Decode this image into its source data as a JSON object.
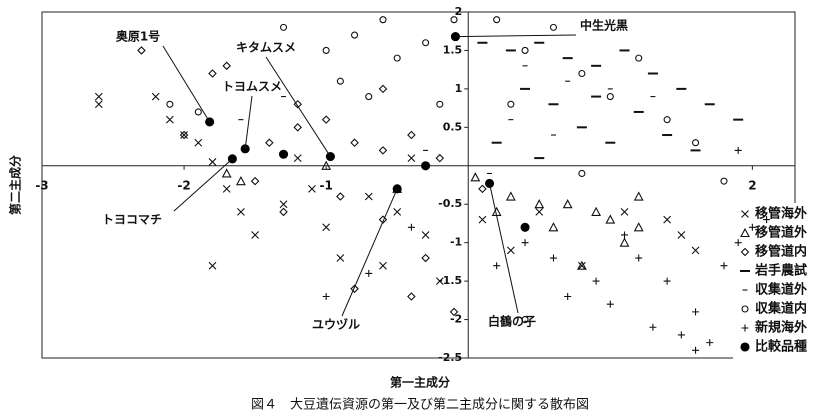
{
  "chart_data": {
    "type": "scatter",
    "xlabel": "第一主成分",
    "ylabel": "第二主成分",
    "caption": "図４　大豆遺伝資源の第一及び第二主成分に関する散布図",
    "xlim": [
      -3,
      2.3
    ],
    "ylim": [
      -2.5,
      2
    ],
    "xticks": [
      -3,
      -2,
      -1,
      2
    ],
    "yticks": [
      -2.5,
      -2,
      -1.5,
      -1,
      -0.5,
      0.5,
      1,
      1.5,
      2
    ],
    "axes_through_origin": true,
    "annotations": [
      "奥原1号",
      "キタムスメ",
      "トヨムスメ",
      "中生光黒",
      "トヨコマチ",
      "ユウヅル",
      "白鶴の子"
    ],
    "series": [
      {
        "name": "移管海外",
        "marker": "x",
        "color": "#111",
        "x": [
          -2.6,
          -2.6,
          -2.2,
          -2.1,
          -2.0,
          -1.9,
          -1.8,
          -1.7,
          -1.6,
          -1.5,
          -1.8,
          -1.3,
          -1.2,
          -1.0,
          -0.9,
          -0.7,
          -0.6,
          -0.4,
          -0.3,
          -0.2,
          0.1,
          0.3,
          0.5,
          0.8,
          1.1,
          1.4,
          1.5,
          1.6,
          -1.1,
          -0.5
        ],
        "y": [
          0.9,
          0.8,
          0.9,
          0.6,
          0.4,
          0.3,
          0.05,
          -0.3,
          -0.6,
          -0.9,
          -1.3,
          -0.5,
          0.1,
          -0.8,
          -1.2,
          -0.4,
          -1.3,
          0.1,
          -0.9,
          -1.5,
          -0.7,
          -1.1,
          -0.6,
          -1.3,
          -0.6,
          -0.7,
          -0.9,
          -1.1,
          -0.3,
          -0.6
        ]
      },
      {
        "name": "移管道外",
        "marker": "triangle",
        "color": "#111",
        "x": [
          -1.7,
          -1.6,
          -1.0,
          -0.5,
          0.05,
          0.3,
          0.5,
          0.6,
          0.7,
          0.9,
          1.0,
          1.2,
          1.2,
          0.8,
          0.2,
          1.1
        ],
        "y": [
          -0.1,
          -0.2,
          0.0,
          -0.3,
          -0.15,
          -0.4,
          -0.5,
          -0.8,
          -0.5,
          -0.6,
          -0.7,
          -0.4,
          -0.8,
          -1.3,
          -0.6,
          -1.0
        ]
      },
      {
        "name": "移管道内",
        "marker": "diamond",
        "color": "#111",
        "x": [
          -2.3,
          -1.7,
          -1.8,
          -2.0,
          -1.4,
          -1.2,
          -1.0,
          -0.8,
          -0.6,
          -0.4,
          -0.2,
          -1.5,
          -1.3,
          -0.9,
          -0.6,
          -0.3,
          -0.1,
          -0.4,
          -0.8,
          -1.2,
          -0.6,
          0.1
        ],
        "y": [
          1.5,
          1.3,
          1.2,
          0.4,
          0.3,
          0.5,
          0.6,
          0.3,
          0.2,
          0.4,
          0.1,
          -0.2,
          -0.6,
          -0.4,
          -0.7,
          -1.2,
          -1.9,
          -1.7,
          -1.6,
          0.8,
          1.0,
          -0.3
        ]
      },
      {
        "name": "岩手農試",
        "marker": "dash",
        "color": "#111",
        "x": [
          0.1,
          0.3,
          0.5,
          0.7,
          0.9,
          1.1,
          1.3,
          1.5,
          1.7,
          1.9,
          0.4,
          0.6,
          0.8,
          1.0,
          1.2,
          1.4,
          0.2,
          1.6,
          0.5,
          0.9
        ],
        "y": [
          1.6,
          1.5,
          1.6,
          1.4,
          1.3,
          1.5,
          1.2,
          1.0,
          0.8,
          0.6,
          1.0,
          0.8,
          0.5,
          0.3,
          0.7,
          0.4,
          0.3,
          0.2,
          0.1,
          0.9
        ]
      },
      {
        "name": "収集道外",
        "marker": "short-dash",
        "color": "#111",
        "x": [
          -1.6,
          -1.3,
          -0.3,
          0.4,
          0.7,
          1.0,
          0.3,
          0.6,
          1.3,
          0.15
        ],
        "y": [
          0.6,
          0.9,
          0.2,
          1.3,
          1.1,
          1.0,
          0.6,
          0.4,
          0.9,
          -0.1
        ]
      },
      {
        "name": "収集道内",
        "marker": "circle",
        "color": "#111",
        "x": [
          -2.1,
          -1.9,
          -1.3,
          -1.0,
          -0.8,
          -0.6,
          -0.5,
          -0.3,
          -0.1,
          0.2,
          0.4,
          0.6,
          0.8,
          1.0,
          1.2,
          1.4,
          1.6,
          -0.7,
          -0.2,
          0.3,
          0.8,
          1.8,
          0.4,
          -0.9
        ],
        "y": [
          0.8,
          0.7,
          1.8,
          1.5,
          1.7,
          1.9,
          1.4,
          1.6,
          1.9,
          1.9,
          1.5,
          1.8,
          1.2,
          0.9,
          1.4,
          0.6,
          0.3,
          0.9,
          0.8,
          0.8,
          -0.1,
          -0.2,
          -2.0,
          1.1
        ]
      },
      {
        "name": "新規海外",
        "marker": "plus",
        "color": "#111",
        "x": [
          -1.0,
          -0.7,
          -0.4,
          0.2,
          0.4,
          0.6,
          0.9,
          1.0,
          1.2,
          1.3,
          1.4,
          1.5,
          1.6,
          1.7,
          1.9,
          2.0,
          2.1,
          1.9,
          1.8,
          1.1,
          0.7,
          1.6
        ],
        "y": [
          -1.7,
          -1.4,
          -0.8,
          -1.3,
          -1.0,
          -1.2,
          -1.5,
          -1.8,
          -1.2,
          -2.1,
          -1.5,
          -2.2,
          -1.9,
          -2.3,
          -1.0,
          -0.8,
          -0.7,
          0.2,
          -1.3,
          -0.9,
          -1.7,
          -2.4
        ]
      },
      {
        "name": "比較品種",
        "marker": "dot",
        "color": "#000",
        "x": [
          -1.82,
          -1.57,
          -0.97,
          -0.09,
          -1.66,
          -0.5,
          0.15,
          -1.3,
          -0.3,
          0.4
        ],
        "y": [
          0.57,
          0.22,
          0.12,
          1.68,
          0.09,
          -0.3,
          -0.23,
          0.15,
          0.0,
          -0.8
        ]
      }
    ]
  }
}
